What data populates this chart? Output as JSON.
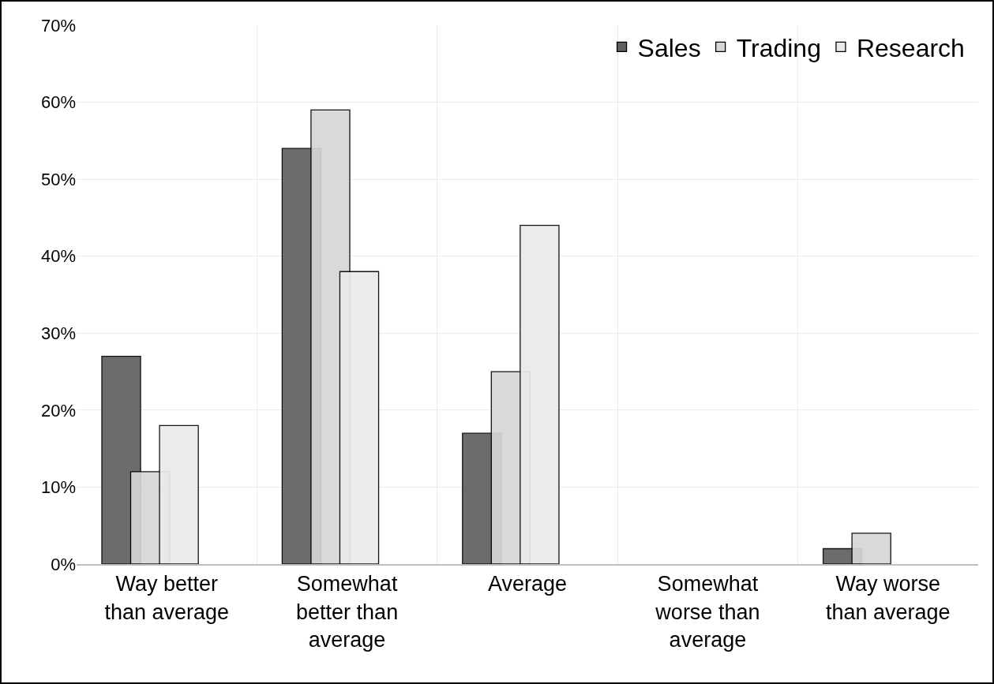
{
  "chart_data": {
    "type": "bar",
    "categories": [
      "Way better\nthan average",
      "Somewhat\nbetter than\naverage",
      "Average",
      "Somewhat\nworse than\naverage",
      "Way worse\nthan average"
    ],
    "series": [
      {
        "name": "Sales",
        "color": "#606060",
        "values": [
          27,
          54,
          17,
          null,
          2
        ]
      },
      {
        "name": "Trading",
        "color": "#d6d6d6",
        "values": [
          12,
          59,
          25,
          null,
          4
        ]
      },
      {
        "name": "Research",
        "color": "#eaeaea",
        "values": [
          18,
          38,
          44,
          null,
          null
        ]
      }
    ],
    "ylim": [
      0,
      70
    ],
    "yticks": [
      {
        "value": 0,
        "label": "0%"
      },
      {
        "value": 10,
        "label": "10%"
      },
      {
        "value": 20,
        "label": "20%"
      },
      {
        "value": 30,
        "label": "30%"
      },
      {
        "value": 40,
        "label": "40%"
      },
      {
        "value": 50,
        "label": "50%"
      },
      {
        "value": 60,
        "label": "60%"
      },
      {
        "value": 70,
        "label": "70%"
      }
    ],
    "grid": true,
    "legend": "top right"
  }
}
